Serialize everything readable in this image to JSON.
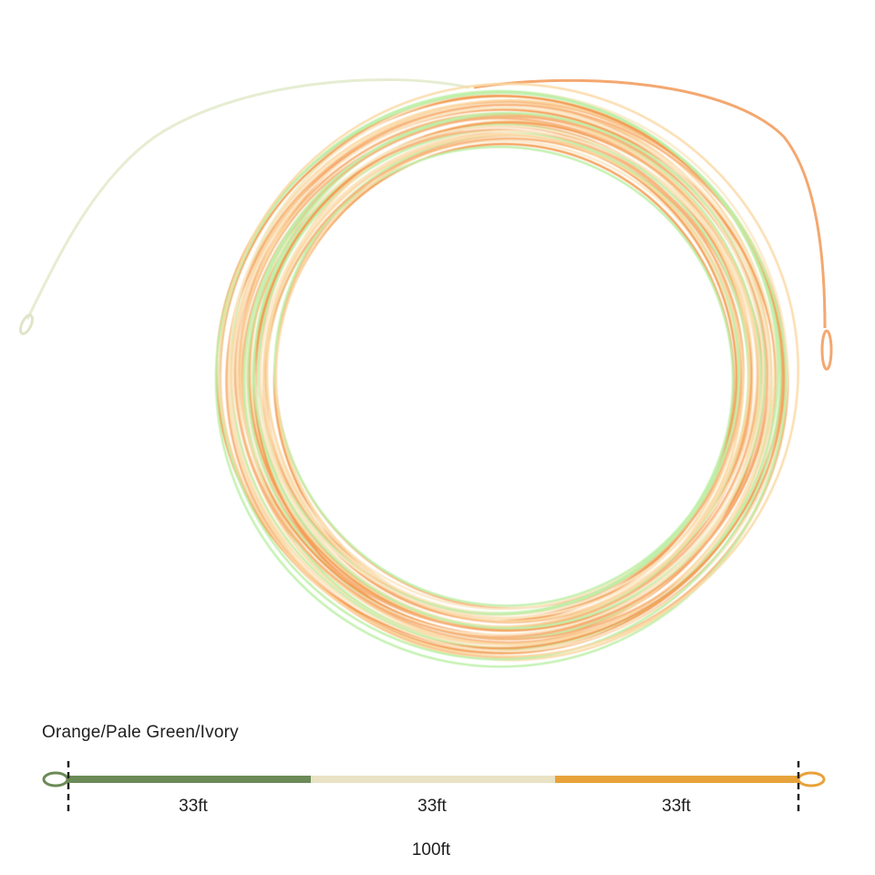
{
  "product": {
    "color_name": "Orange/Pale Green/Ivory",
    "segments": [
      {
        "length": "33ft",
        "color": "#6b8a56"
      },
      {
        "length": "33ft",
        "color": "#e9e2c4"
      },
      {
        "length": "33ft",
        "color": "#e8a23a"
      }
    ],
    "total_length": "100ft",
    "loop_colors": {
      "left": "#6b8a56",
      "right": "#e8a23a"
    },
    "coil_colors": [
      "#f39a4f",
      "#fbd9a5",
      "#bdf0a8",
      "#fbe7c6",
      "#f7b27a"
    ]
  }
}
